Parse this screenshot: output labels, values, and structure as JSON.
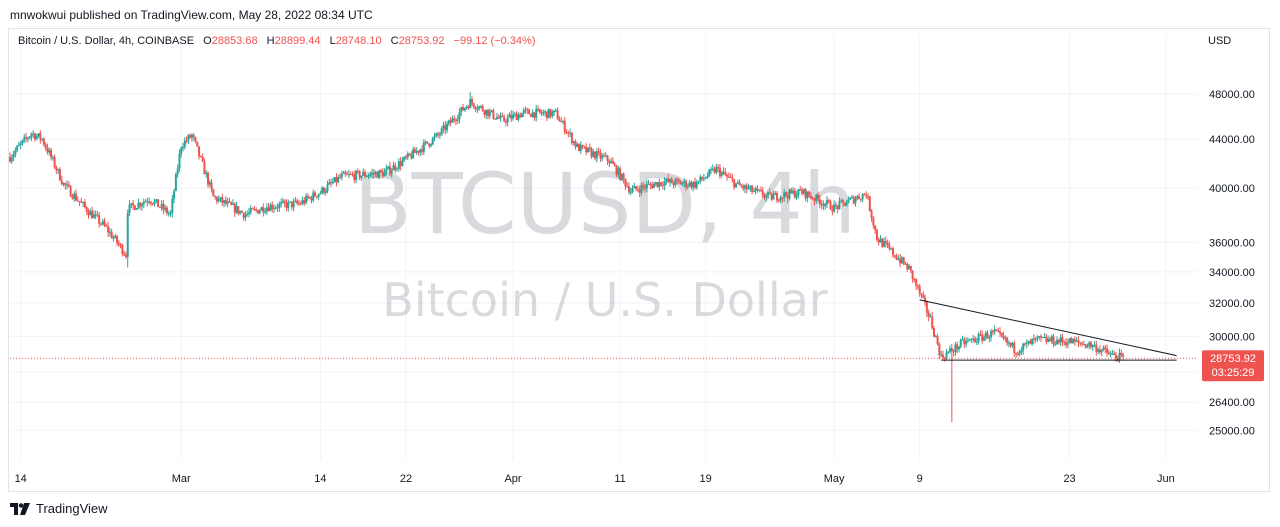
{
  "header": {
    "published_by": "mnwokwui published on TradingView.com, May 28, 2022 08:34 UTC"
  },
  "legend": {
    "symbol": "Bitcoin / U.S. Dollar, 4h, COINBASE",
    "open_label": "O",
    "open": "28853.68",
    "high_label": "H",
    "high": "28899.44",
    "low_label": "L",
    "low": "28748.10",
    "close_label": "C",
    "close": "28753.92",
    "change": "−99.12 (−0.34%)"
  },
  "currency": "USD",
  "watermark": {
    "line1": "BTCUSD, 4h",
    "line2": "Bitcoin / U.S. Dollar"
  },
  "price_badge": {
    "price": "28753.92",
    "countdown": "03:25:29"
  },
  "footer": {
    "brand": "TradingView"
  },
  "colors": {
    "up": "#26a69a",
    "down": "#ef5350",
    "grid": "#f0f3fa",
    "trendline": "#131722",
    "badge": "#ef5350"
  },
  "chart_data": {
    "type": "candlestick",
    "y_scale": "log",
    "y_ticks": [
      25000,
      26400,
      28000,
      30000,
      32000,
      34000,
      36000,
      40000,
      44000,
      48000
    ],
    "y_tick_labels": [
      "25000.00",
      "26400.00",
      "28000.00",
      "30000.00",
      "32000.00",
      "34000.00",
      "36000.00",
      "40000.00",
      "44000.00",
      "48000.00"
    ],
    "x_tick_labels": [
      "14",
      "Mar",
      "14",
      "22",
      "Apr",
      "11",
      "19",
      "May",
      "9",
      "23",
      "Jun"
    ],
    "x_tick_dates": [
      "2022-02-14",
      "2022-03-01",
      "2022-03-14",
      "2022-03-22",
      "2022-04-01",
      "2022-04-11",
      "2022-04-19",
      "2022-05-01",
      "2022-05-09",
      "2022-05-23",
      "2022-06-01"
    ],
    "x_range": [
      "2022-02-13",
      "2022-06-04"
    ],
    "y_range": [
      23600,
      52500
    ],
    "price_path": [
      [
        "2022-02-13",
        42500
      ],
      [
        "2022-02-15",
        44500
      ],
      [
        "2022-02-16",
        44000
      ],
      [
        "2022-02-18",
        40300
      ],
      [
        "2022-02-20",
        38500
      ],
      [
        "2022-02-22",
        37000
      ],
      [
        "2022-02-24",
        35000
      ],
      [
        "2022-02-24",
        38400
      ],
      [
        "2022-02-26",
        39200
      ],
      [
        "2022-02-28",
        38000
      ],
      [
        "2022-03-01",
        43500
      ],
      [
        "2022-03-02",
        44300
      ],
      [
        "2022-03-04",
        39300
      ],
      [
        "2022-03-07",
        38000
      ],
      [
        "2022-03-09",
        38600
      ],
      [
        "2022-03-12",
        38800
      ],
      [
        "2022-03-14",
        39700
      ],
      [
        "2022-03-16",
        40900
      ],
      [
        "2022-03-20",
        41200
      ],
      [
        "2022-03-22",
        42300
      ],
      [
        "2022-03-25",
        44300
      ],
      [
        "2022-03-28",
        47300
      ],
      [
        "2022-03-31",
        45600
      ],
      [
        "2022-04-02",
        46300
      ],
      [
        "2022-04-05",
        46200
      ],
      [
        "2022-04-07",
        43300
      ],
      [
        "2022-04-10",
        42200
      ],
      [
        "2022-04-12",
        39800
      ],
      [
        "2022-04-15",
        40500
      ],
      [
        "2022-04-18",
        40300
      ],
      [
        "2022-04-20",
        41500
      ],
      [
        "2022-04-22",
        40200
      ],
      [
        "2022-04-25",
        39300
      ],
      [
        "2022-04-28",
        39700
      ],
      [
        "2022-05-01",
        38500
      ],
      [
        "2022-05-04",
        39600
      ],
      [
        "2022-05-05",
        36300
      ],
      [
        "2022-05-08",
        34200
      ],
      [
        "2022-05-10",
        31000
      ],
      [
        "2022-05-11",
        28800
      ],
      [
        "2022-05-13",
        29600
      ],
      [
        "2022-05-16",
        30200
      ],
      [
        "2022-05-18",
        29200
      ],
      [
        "2022-05-20",
        29800
      ],
      [
        "2022-05-23",
        29700
      ],
      [
        "2022-05-25",
        29500
      ],
      [
        "2022-05-27",
        28900
      ],
      [
        "2022-05-28",
        28754
      ]
    ],
    "notable_extremes": [
      {
        "date": "2022-02-24",
        "low": 34300
      },
      {
        "date": "2022-03-28",
        "high": 48200
      },
      {
        "date": "2022-05-12",
        "low": 25400
      }
    ],
    "last_price": 28753.92,
    "trendlines": [
      {
        "from": [
          "2022-05-09",
          32200
        ],
        "to": [
          "2022-06-02",
          28900
        ]
      },
      {
        "from": [
          "2022-05-11",
          28650
        ],
        "to": [
          "2022-06-02",
          28650
        ]
      }
    ]
  }
}
